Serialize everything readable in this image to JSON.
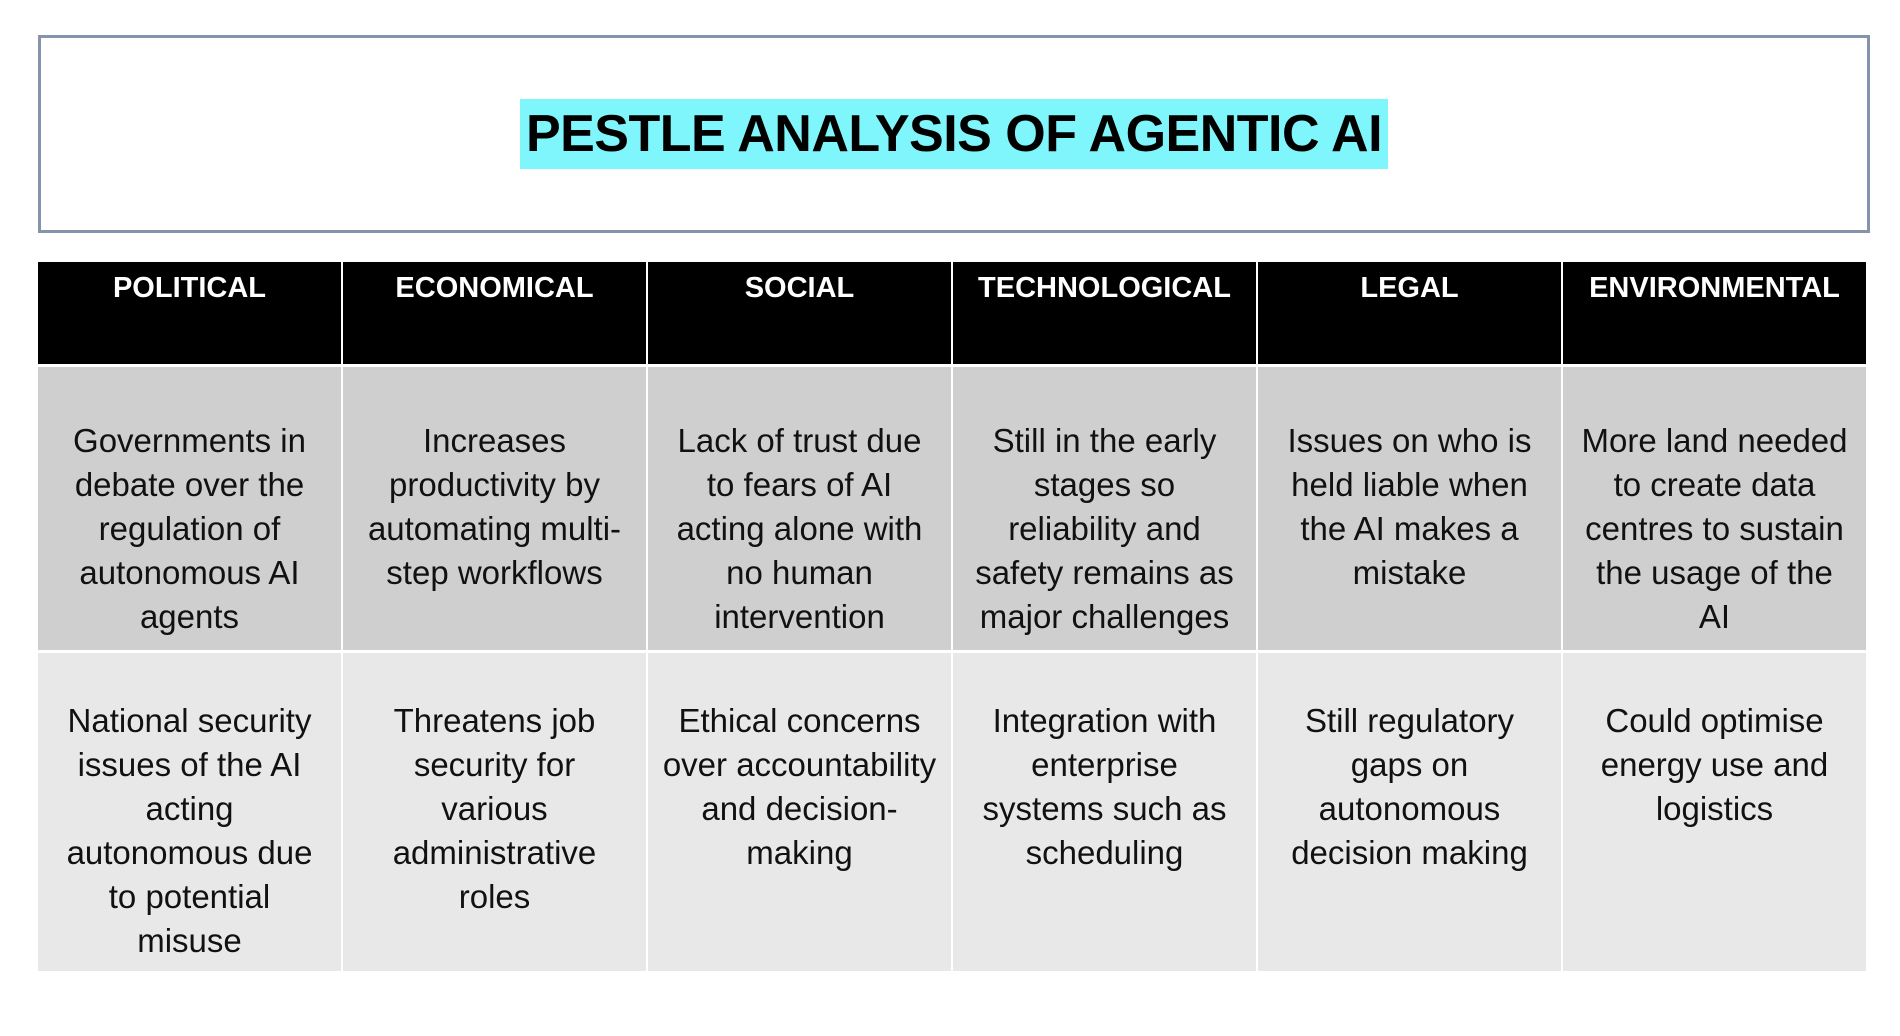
{
  "title": "PESTLE ANALYSIS OF AGENTIC AI",
  "colors": {
    "title_highlight": "#7ff6fb",
    "title_border": "#8593ad",
    "header_bg": "#000000",
    "header_text": "#ffffff",
    "row1_bg": "#cfcfcf",
    "row2_bg": "#e8e8e8"
  },
  "table": {
    "headers": [
      "POLITICAL",
      "ECONOMICAL",
      "SOCIAL",
      "TECHNOLOGICAL",
      "LEGAL",
      "ENVIRONMENTAL"
    ],
    "rows": [
      [
        "Governments in debate over the regulation of autonomous AI agents",
        "Increases productivity by automating multi-step workflows",
        "Lack of trust due to fears of AI acting alone with no human intervention",
        "Still in the early stages so reliability and safety remains as major challenges",
        "Issues on who is held liable when the AI makes a mistake",
        "More land needed to create data centres to sustain the usage of the AI"
      ],
      [
        "National security issues of the AI acting autonomous due to potential misuse",
        "Threatens job security for various administrative roles",
        "Ethical concerns over accountability and decision-making",
        "Integration with enterprise systems such as scheduling",
        "Still regulatory gaps on autonomous decision making",
        "Could optimise energy use and logistics"
      ]
    ]
  }
}
